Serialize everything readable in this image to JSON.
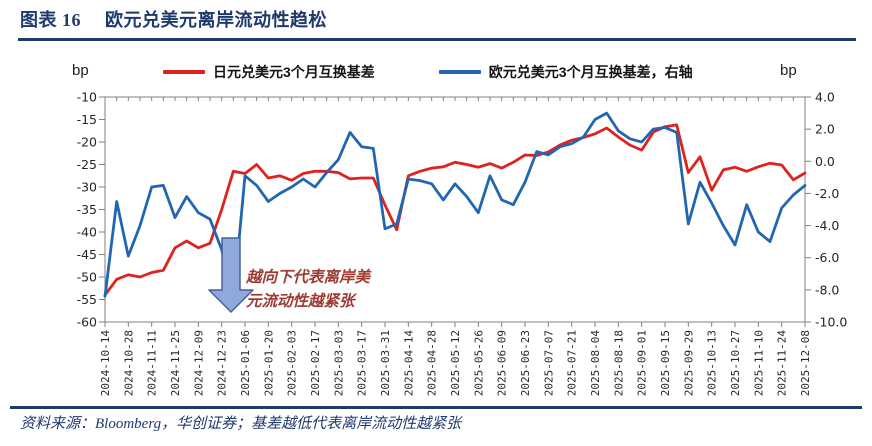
{
  "header": {
    "figure_label": "图表 16",
    "title": "欧元兑美元离岸流动性趋松"
  },
  "axes_units": {
    "left": "bp",
    "right": "bp"
  },
  "footer": {
    "source": "资料来源：Bloomberg，华创证券；基差越低代表离岸流动性越紧张"
  },
  "colors": {
    "accent_navy": "#1e3a6d",
    "red_series": "#e0221f",
    "blue_series": "#2166b3",
    "arrow_fill": "#8ea9db",
    "arrow_stroke": "#44619d",
    "annotation_text": "#9e3b33",
    "axis_gray": "#808080",
    "tick_text": "#262626"
  },
  "chart_data": {
    "type": "line",
    "title": "欧元兑美元离岸流动性趋松",
    "grid": false,
    "legend_position": "top",
    "left_axis": {
      "unit": "bp",
      "min": -60,
      "max": -10,
      "ticks": [
        -10,
        -15,
        -20,
        -25,
        -30,
        -35,
        -40,
        -45,
        -50,
        -55,
        -60
      ],
      "tick_labels": [
        "-10",
        "-15",
        "-20",
        "-25",
        "-30",
        "-35",
        "-40",
        "-45",
        "-50",
        "-55",
        "-60"
      ]
    },
    "right_axis": {
      "unit": "bp",
      "min": -10,
      "max": 4,
      "ticks": [
        4,
        2,
        0,
        -2,
        -4,
        -6,
        -8,
        -10
      ],
      "tick_labels": [
        "4.0",
        "2.0",
        "0.0",
        "-2.0",
        "-4.0",
        "-6.0",
        "-8.0",
        "-10.0"
      ]
    },
    "x_tick_labels": [
      "2024-10-14",
      "2024-10-28",
      "2024-11-11",
      "2024-11-25",
      "2024-12-09",
      "2024-12-23",
      "2025-01-06",
      "2025-01-20",
      "2025-02-03",
      "2025-02-17",
      "2025-03-03",
      "2025-03-17",
      "2025-03-31",
      "2025-04-14",
      "2025-04-28",
      "2025-05-12",
      "2025-05-26",
      "2025-06-09",
      "2025-06-23",
      "2025-07-07",
      "2025-07-21",
      "2025-08-04",
      "2025-08-18",
      "2025-09-01",
      "2025-09-15",
      "2025-09-29",
      "2025-10-13",
      "2025-10-27",
      "2025-11-10",
      "2025-11-24",
      "2025-12-08"
    ],
    "x_dates": [
      "2024-10-14",
      "2024-10-21",
      "2024-10-28",
      "2024-11-04",
      "2024-11-11",
      "2024-11-18",
      "2024-11-25",
      "2024-12-02",
      "2024-12-09",
      "2024-12-16",
      "2024-12-23",
      "2024-12-30",
      "2025-01-06",
      "2025-01-13",
      "2025-01-20",
      "2025-01-27",
      "2025-02-03",
      "2025-02-10",
      "2025-02-17",
      "2025-02-24",
      "2025-03-03",
      "2025-03-10",
      "2025-03-17",
      "2025-03-24",
      "2025-03-31",
      "2025-04-07",
      "2025-04-14",
      "2025-04-21",
      "2025-04-28",
      "2025-05-05",
      "2025-05-12",
      "2025-05-19",
      "2025-05-26",
      "2025-06-02",
      "2025-06-09",
      "2025-06-16",
      "2025-06-23",
      "2025-06-30",
      "2025-07-07",
      "2025-07-14",
      "2025-07-21",
      "2025-07-28",
      "2025-08-04",
      "2025-08-11",
      "2025-08-18",
      "2025-08-25",
      "2025-09-01",
      "2025-09-08",
      "2025-09-15",
      "2025-09-22",
      "2025-09-29",
      "2025-10-06",
      "2025-10-13",
      "2025-10-20",
      "2025-10-27",
      "2025-11-03",
      "2025-11-10",
      "2025-11-17",
      "2025-11-24",
      "2025-12-01",
      "2025-12-08"
    ],
    "series": [
      {
        "name": "日元兑美元3个月互换基差",
        "axis": "left",
        "color": "#e0221f",
        "values": [
          -54,
          -50.5,
          -49.5,
          -50,
          -49,
          -48.5,
          -43.5,
          -42,
          -43.5,
          -42.5,
          -35,
          -26.5,
          -27,
          -25,
          -28,
          -27.5,
          -28.5,
          -27,
          -26.5,
          -26.5,
          -26.8,
          -28.2,
          -28,
          -28,
          -34,
          -39.5,
          -27.5,
          -26.5,
          -25.8,
          -25.5,
          -24.5,
          -25,
          -25.6,
          -24.8,
          -25.8,
          -24.5,
          -22.9,
          -23,
          -22.2,
          -20.7,
          -19.6,
          -19,
          -18.2,
          -16.9,
          -18.9,
          -20.7,
          -21.8,
          -17.8,
          -16.6,
          -16.2,
          -26.8,
          -23.3,
          -30.7,
          -26.2,
          -25.6,
          -26.5,
          -25.5,
          -24.7,
          -25.1,
          -28.4,
          -26.9
        ]
      },
      {
        "name": "欧元兑美元3个月互换基差，右轴",
        "axis": "right",
        "color": "#2166b3",
        "values": [
          -8.4,
          -2.5,
          -5.9,
          -4,
          -1.6,
          -1.5,
          -3.5,
          -2.2,
          -3.2,
          -3.6,
          -5.5,
          -8.7,
          -0.9,
          -1.5,
          -2.5,
          -2,
          -1.6,
          -1.1,
          -1.6,
          -0.7,
          0.1,
          1.8,
          0.9,
          0.8,
          -4.2,
          -3.9,
          -1.1,
          -1.2,
          -1.4,
          -2.4,
          -1.4,
          -2.2,
          -3.2,
          -0.9,
          -2.4,
          -2.7,
          -1.3,
          0.6,
          0.4,
          0.9,
          1.1,
          1.5,
          2.6,
          3,
          1.9,
          1.4,
          1.2,
          2,
          2.1,
          1.8,
          -3.9,
          -1.3,
          -2.6,
          -4,
          -5.2,
          -2.7,
          -4.4,
          -5,
          -2.9,
          -2.1,
          -1.5
        ]
      }
    ],
    "annotation": {
      "line1": "越向下代表离岸美",
      "line2": "元流动性越紧张",
      "arrow_direction": "down",
      "arrow_points_at": "2024-12-30"
    }
  }
}
